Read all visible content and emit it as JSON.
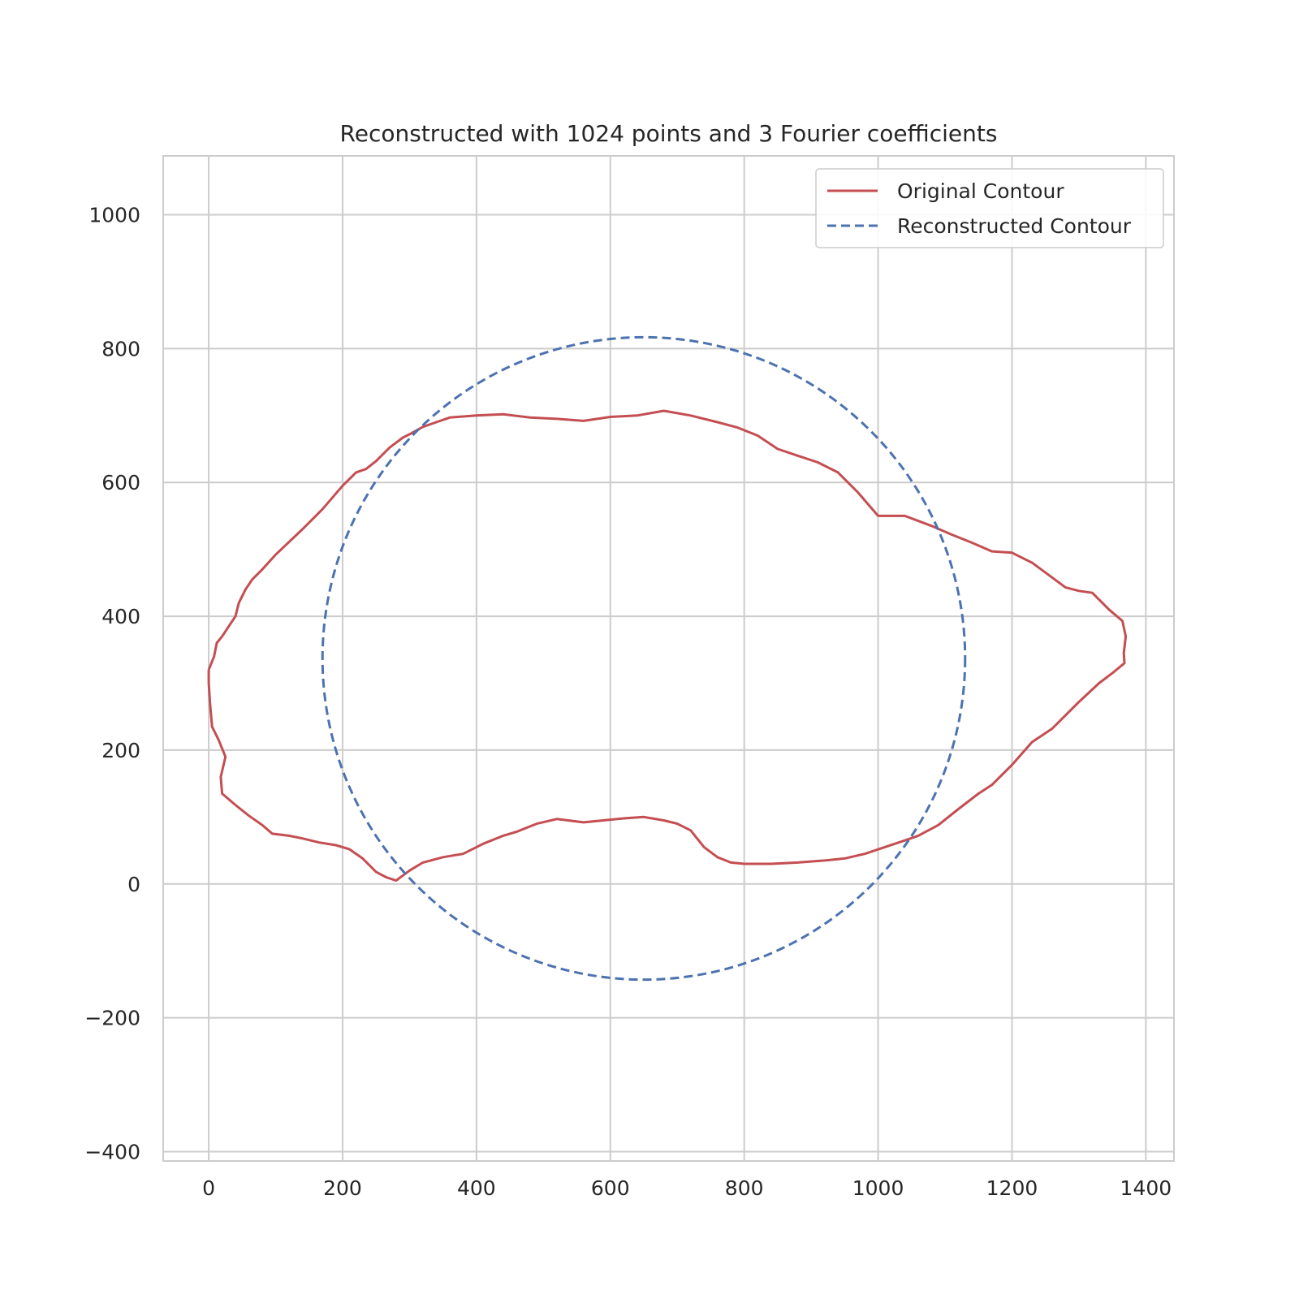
{
  "chart_data": {
    "type": "line",
    "title": "Reconstructed with 1024 points and 3 Fourier coefficients",
    "xlabel": "",
    "ylabel": "",
    "xlim": [
      -68,
      1442
    ],
    "ylim": [
      -414,
      1088
    ],
    "xticks": [
      0,
      200,
      400,
      600,
      800,
      1000,
      1200,
      1400
    ],
    "yticks": [
      -400,
      -200,
      0,
      200,
      400,
      600,
      800,
      1000
    ],
    "xtick_labels": [
      "0",
      "200",
      "400",
      "600",
      "800",
      "1000",
      "1200",
      "1400"
    ],
    "ytick_labels": [
      "−400",
      "−200",
      "0",
      "200",
      "400",
      "600",
      "800",
      "1000"
    ],
    "grid": true,
    "legend_position": "top-right",
    "series": [
      {
        "name": "Original Contour",
        "color": "#c44e52",
        "style": "solid",
        "points": [
          [
            0,
            320
          ],
          [
            8,
            340
          ],
          [
            12,
            360
          ],
          [
            20,
            370
          ],
          [
            30,
            385
          ],
          [
            40,
            400
          ],
          [
            45,
            420
          ],
          [
            55,
            440
          ],
          [
            65,
            455
          ],
          [
            80,
            470
          ],
          [
            100,
            492
          ],
          [
            140,
            530
          ],
          [
            170,
            560
          ],
          [
            200,
            595
          ],
          [
            220,
            615
          ],
          [
            235,
            620
          ],
          [
            250,
            632
          ],
          [
            270,
            652
          ],
          [
            290,
            667
          ],
          [
            300,
            672
          ],
          [
            320,
            683
          ],
          [
            340,
            690
          ],
          [
            360,
            697
          ],
          [
            400,
            700
          ],
          [
            440,
            702
          ],
          [
            480,
            697
          ],
          [
            520,
            695
          ],
          [
            560,
            692
          ],
          [
            600,
            698
          ],
          [
            640,
            700
          ],
          [
            680,
            707
          ],
          [
            720,
            700
          ],
          [
            760,
            690
          ],
          [
            790,
            682
          ],
          [
            820,
            670
          ],
          [
            850,
            650
          ],
          [
            880,
            640
          ],
          [
            910,
            630
          ],
          [
            940,
            615
          ],
          [
            970,
            585
          ],
          [
            1000,
            550
          ],
          [
            1040,
            550
          ],
          [
            1080,
            535
          ],
          [
            1110,
            522
          ],
          [
            1140,
            510
          ],
          [
            1170,
            497
          ],
          [
            1200,
            495
          ],
          [
            1230,
            480
          ],
          [
            1260,
            458
          ],
          [
            1280,
            443
          ],
          [
            1300,
            438
          ],
          [
            1320,
            435
          ],
          [
            1345,
            410
          ],
          [
            1365,
            393
          ],
          [
            1370,
            370
          ],
          [
            1367,
            345
          ],
          [
            1368,
            330
          ],
          [
            1350,
            315
          ],
          [
            1330,
            300
          ],
          [
            1300,
            272
          ],
          [
            1260,
            232
          ],
          [
            1230,
            212
          ],
          [
            1200,
            178
          ],
          [
            1170,
            148
          ],
          [
            1150,
            135
          ],
          [
            1120,
            112
          ],
          [
            1090,
            88
          ],
          [
            1060,
            72
          ],
          [
            1040,
            65
          ],
          [
            1010,
            55
          ],
          [
            980,
            45
          ],
          [
            950,
            38
          ],
          [
            920,
            35
          ],
          [
            880,
            32
          ],
          [
            840,
            30
          ],
          [
            800,
            30
          ],
          [
            780,
            32
          ],
          [
            760,
            40
          ],
          [
            740,
            55
          ],
          [
            720,
            80
          ],
          [
            700,
            90
          ],
          [
            680,
            95
          ],
          [
            650,
            100
          ],
          [
            620,
            98
          ],
          [
            600,
            96
          ],
          [
            560,
            92
          ],
          [
            520,
            97
          ],
          [
            490,
            90
          ],
          [
            460,
            78
          ],
          [
            440,
            72
          ],
          [
            410,
            60
          ],
          [
            380,
            45
          ],
          [
            350,
            40
          ],
          [
            320,
            32
          ],
          [
            300,
            20
          ],
          [
            280,
            5
          ],
          [
            265,
            10
          ],
          [
            250,
            18
          ],
          [
            230,
            38
          ],
          [
            210,
            52
          ],
          [
            190,
            58
          ],
          [
            165,
            62
          ],
          [
            140,
            68
          ],
          [
            120,
            72
          ],
          [
            95,
            75
          ],
          [
            80,
            88
          ],
          [
            60,
            102
          ],
          [
            40,
            118
          ],
          [
            20,
            135
          ],
          [
            18,
            160
          ],
          [
            25,
            190
          ],
          [
            15,
            215
          ],
          [
            5,
            235
          ],
          [
            2,
            270
          ],
          [
            0,
            300
          ],
          [
            0,
            320
          ]
        ]
      },
      {
        "name": "Reconstructed Contour",
        "color": "#4c72b0",
        "style": "dashed",
        "center": [
          650,
          337
        ],
        "radius_x": 480,
        "radius_y": 480
      }
    ]
  }
}
